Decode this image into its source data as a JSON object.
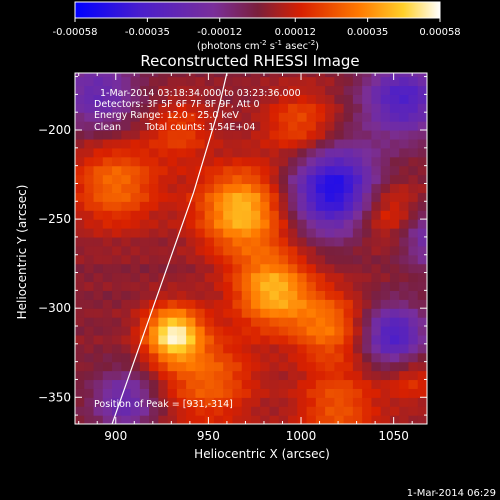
{
  "chart_data": {
    "type": "heatmap",
    "title": "Reconstructed RHESSI Image",
    "xlabel": "Heliocentric X (arcsec)",
    "ylabel": "Heliocentric Y (arcsec)",
    "xlim": [
      878,
      1068
    ],
    "ylim": [
      -365,
      -168
    ],
    "x_ticks": [
      900,
      950,
      1000,
      1050
    ],
    "y_ticks": [
      -200,
      -250,
      -300,
      -350
    ],
    "colorbar": {
      "range": [
        -0.00058,
        0.00058
      ],
      "tick_labels": [
        "-0.00058",
        "-0.00035",
        "-0.00012",
        "0.00012",
        "0.00035",
        "0.00058"
      ],
      "unit_label": "(photons cm",
      "unit_sup1": "-2",
      "unit_mid1": " s",
      "unit_sup2": "-1",
      "unit_mid2": " asec",
      "unit_sup3": "-2",
      "unit_end": ")"
    },
    "annotations": {
      "time": "1-Mar-2014 03:18:34.000 to 03:23:36.000",
      "detectors": "Detectors: 3F 5F 6F 7F 8F 9F, Att 0",
      "energy": "Energy Range: 12.0 - 25.0 keV",
      "clean": "Clean",
      "counts": "Total counts: 1.54E+04",
      "peak": "Position of Peak = [931,-314]"
    },
    "timestamp": "1-Mar-2014 06:29",
    "peak": [
      931,
      -314
    ],
    "limb_curve": [
      [
        898,
        -365
      ],
      [
        920,
        -300
      ],
      [
        942,
        -235
      ],
      [
        955,
        -190
      ],
      [
        960,
        -168
      ]
    ],
    "sources": [
      {
        "x": 931,
        "y": -314,
        "sigma": 11,
        "amp": 1.0
      },
      {
        "x": 968,
        "y": -245,
        "sigma": 17,
        "amp": 0.85
      },
      {
        "x": 985,
        "y": -290,
        "sigma": 15,
        "amp": 0.8
      },
      {
        "x": 900,
        "y": -230,
        "sigma": 17,
        "amp": 0.55
      },
      {
        "x": 950,
        "y": -340,
        "sigma": 18,
        "amp": 0.5
      },
      {
        "x": 1015,
        "y": -310,
        "sigma": 14,
        "amp": 0.55
      },
      {
        "x": 1045,
        "y": -245,
        "sigma": 13,
        "amp": 0.45
      },
      {
        "x": 1000,
        "y": -198,
        "sigma": 14,
        "amp": 0.45
      },
      {
        "x": 935,
        "y": -200,
        "sigma": 12,
        "amp": 0.35
      },
      {
        "x": 1020,
        "y": -355,
        "sigma": 16,
        "amp": 0.45
      },
      {
        "x": 1060,
        "y": -340,
        "sigma": 10,
        "amp": 0.3
      }
    ],
    "negatives": [
      {
        "x": 1018,
        "y": -233,
        "sigma": 17,
        "amp": 1.1
      },
      {
        "x": 1050,
        "y": -315,
        "sigma": 12,
        "amp": 0.8
      },
      {
        "x": 1055,
        "y": -182,
        "sigma": 15,
        "amp": 0.75
      },
      {
        "x": 890,
        "y": -180,
        "sigma": 15,
        "amp": 0.55
      },
      {
        "x": 905,
        "y": -352,
        "sigma": 12,
        "amp": 0.55
      },
      {
        "x": 1070,
        "y": -260,
        "sigma": 12,
        "amp": 0.5
      }
    ]
  }
}
